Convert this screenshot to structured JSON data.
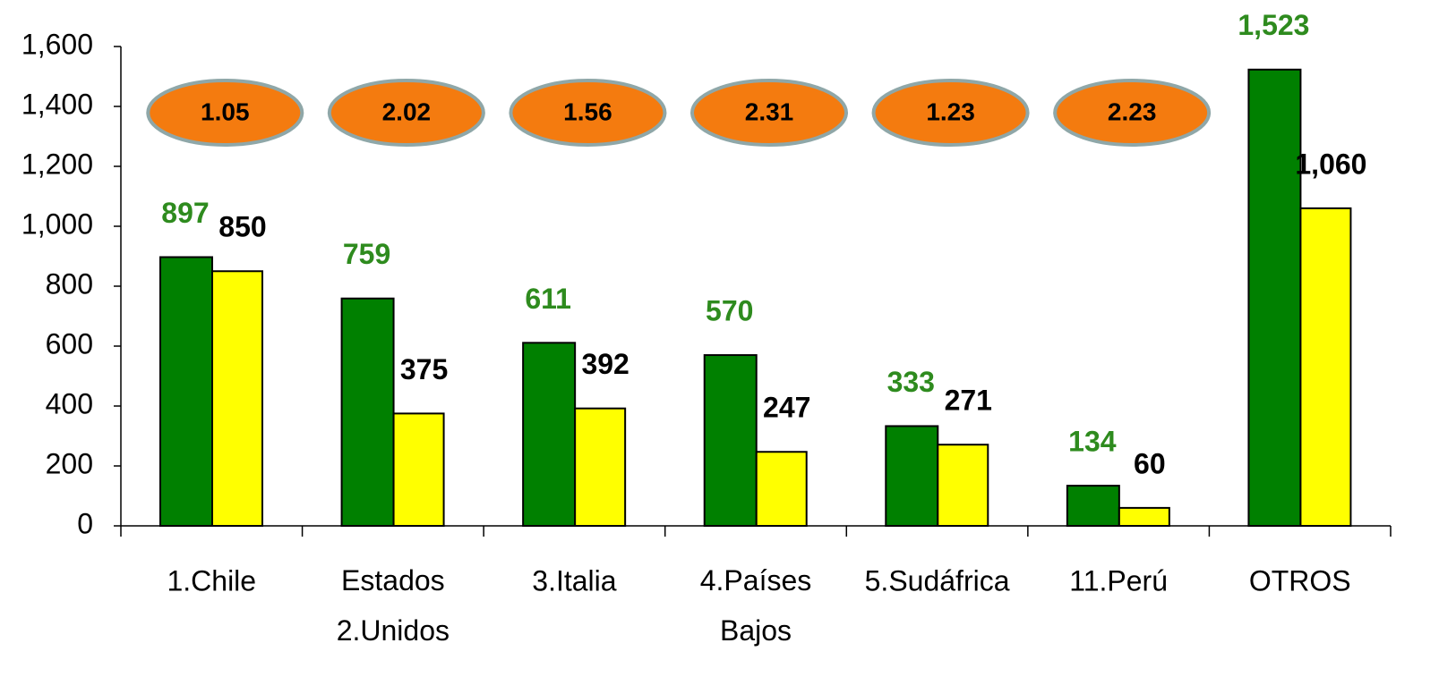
{
  "chart_data": {
    "type": "bar",
    "categories": [
      "1.Chile",
      "Estados\n2.Unidos",
      "3.Italia",
      "4.Países\nBajos",
      "5.Sudáfrica",
      "11.Perú",
      "OTROS"
    ],
    "series": [
      {
        "color": "#008000",
        "label_color": "#2e8b1e",
        "values": [
          897,
          759,
          611,
          570,
          333,
          134,
          1523
        ],
        "value_labels": [
          "897",
          "759",
          "611",
          "570",
          "333",
          "134",
          "1,523"
        ]
      },
      {
        "color": "#ffff00",
        "label_color": "#000000",
        "values": [
          850,
          375,
          392,
          247,
          271,
          60,
          1060
        ],
        "value_labels": [
          "850",
          "375",
          "392",
          "247",
          "271",
          "60",
          "1,060"
        ]
      }
    ],
    "annotations": [
      "1.05",
      "2.02",
      "1.56",
      "2.31",
      "1.23",
      "2.23",
      null
    ],
    "annotation_color": "#f47b0f",
    "ylim": [
      0,
      1600
    ],
    "yticks": [
      0,
      200,
      400,
      600,
      800,
      {
        "value": 1000,
        "label": "1,000"
      },
      {
        "value": 1200,
        "label": "1,200"
      },
      {
        "value": 1400,
        "label": "1,400"
      },
      {
        "value": 1600,
        "label": "1,600"
      }
    ],
    "grid": false
  }
}
